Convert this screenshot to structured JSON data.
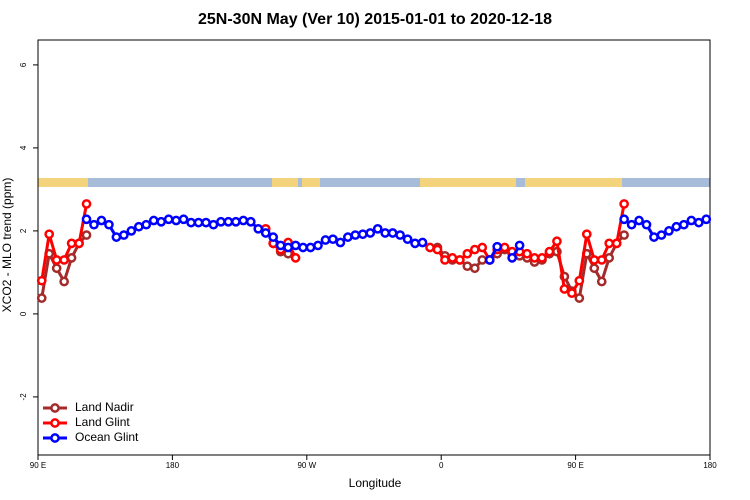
{
  "chart_data": {
    "type": "line",
    "title": "25N-30N May (Ver 10)   2015-01-01 to 2020-12-18",
    "x_label": "Longitude",
    "y_label": "XCO2 - MLO trend (ppm)",
    "xlim": [
      90,
      540
    ],
    "xticks": [
      {
        "value": 90,
        "label": "90 E"
      },
      180,
      {
        "value": 270,
        "label": "90 W"
      },
      {
        "value": 360,
        "label": "0"
      },
      {
        "value": 450,
        "label": "90 E"
      },
      {
        "value": 540,
        "label": "180"
      }
    ],
    "ylim": [
      -3.4,
      6.6
    ],
    "yticks": [
      6,
      4,
      2,
      0,
      -2
    ],
    "legend": "bottom-left",
    "series": [
      {
        "name": "Land Nadir",
        "color": "#a52a2a",
        "x": [
          92.5,
          97.5,
          102.5,
          107.5,
          112.5,
          117.5,
          122.5,
          127.5,
          247.5,
          252.5,
          257.5,
          262.5,
          357.5,
          362.5,
          367.5,
          372.5,
          377.5,
          382.5,
          387.5,
          392.5,
          397.5,
          402.5,
          407.5,
          412.5,
          417.5,
          422.5,
          427.5,
          432.5,
          437.5,
          442.5,
          447.5,
          452.5,
          457.5,
          462.5,
          467.5,
          472.5,
          477.5,
          482.5
        ],
        "values": [
          0.38,
          1.45,
          1.1,
          0.78,
          1.35,
          1.7,
          1.9,
          null,
          1.7,
          1.5,
          1.45,
          null,
          1.6,
          1.4,
          1.3,
          1.3,
          1.15,
          1.1,
          1.3,
          1.3,
          1.45,
          1.55,
          1.45,
          1.4,
          1.35,
          1.25,
          1.3,
          1.45,
          1.5,
          0.9,
          0.55,
          0.38,
          1.45,
          1.1,
          0.78,
          1.35,
          1.7,
          1.9
        ]
      },
      {
        "name": "Land Glint",
        "color": "#ff0000",
        "x": [
          92.5,
          97.5,
          102.5,
          107.5,
          112.5,
          117.5,
          122.5,
          127.5,
          242.5,
          247.5,
          252.5,
          257.5,
          262.5,
          267.5,
          352.5,
          357.5,
          362.5,
          367.5,
          372.5,
          377.5,
          382.5,
          387.5,
          392.5,
          397.5,
          402.5,
          407.5,
          412.5,
          417.5,
          422.5,
          427.5,
          432.5,
          437.5,
          442.5,
          447.5,
          452.5,
          457.5,
          462.5,
          467.5,
          472.5,
          477.5,
          482.5
        ],
        "values": [
          0.8,
          1.92,
          1.3,
          1.3,
          1.7,
          1.7,
          2.65,
          null,
          2.05,
          1.7,
          1.55,
          1.72,
          1.35,
          null,
          1.6,
          1.55,
          1.3,
          1.35,
          1.3,
          1.45,
          1.55,
          1.6,
          1.3,
          1.55,
          1.6,
          1.5,
          1.5,
          1.45,
          1.35,
          1.35,
          1.5,
          1.75,
          0.6,
          0.5,
          0.8,
          1.92,
          1.3,
          1.3,
          1.7,
          1.7,
          2.65
        ]
      },
      {
        "name": "Ocean Glint",
        "color": "#0000ff",
        "x": [
          122.5,
          127.5,
          132.5,
          137.5,
          142.5,
          147.5,
          152.5,
          157.5,
          162.5,
          167.5,
          172.5,
          177.5,
          182.5,
          187.5,
          192.5,
          197.5,
          202.5,
          207.5,
          212.5,
          217.5,
          222.5,
          227.5,
          232.5,
          237.5,
          242.5,
          247.5,
          252.5,
          257.5,
          262.5,
          267.5,
          272.5,
          277.5,
          282.5,
          287.5,
          292.5,
          297.5,
          302.5,
          307.5,
          312.5,
          317.5,
          322.5,
          327.5,
          332.5,
          337.5,
          342.5,
          347.5,
          352.5,
          392.5,
          397.5,
          402.5,
          407.5,
          412.5,
          417.5,
          482.5,
          487.5,
          492.5,
          497.5,
          502.5,
          507.5,
          512.5,
          517.5,
          522.5,
          527.5,
          532.5,
          537.5
        ],
        "values": [
          2.28,
          2.15,
          2.25,
          2.15,
          1.85,
          1.9,
          2.0,
          2.1,
          2.15,
          2.25,
          2.22,
          2.28,
          2.25,
          2.28,
          2.2,
          2.2,
          2.2,
          2.15,
          2.22,
          2.22,
          2.22,
          2.25,
          2.22,
          2.05,
          1.95,
          1.85,
          1.65,
          1.6,
          1.65,
          1.6,
          1.6,
          1.65,
          1.78,
          1.8,
          1.72,
          1.85,
          1.9,
          1.92,
          1.95,
          2.05,
          1.95,
          1.95,
          1.9,
          1.8,
          1.7,
          1.72,
          null,
          1.3,
          1.62,
          null,
          1.35,
          1.65,
          null,
          2.28,
          2.15,
          2.25,
          2.15,
          1.85,
          1.9,
          2.0,
          2.1,
          2.15,
          2.25,
          2.2,
          2.28
        ]
      }
    ]
  }
}
